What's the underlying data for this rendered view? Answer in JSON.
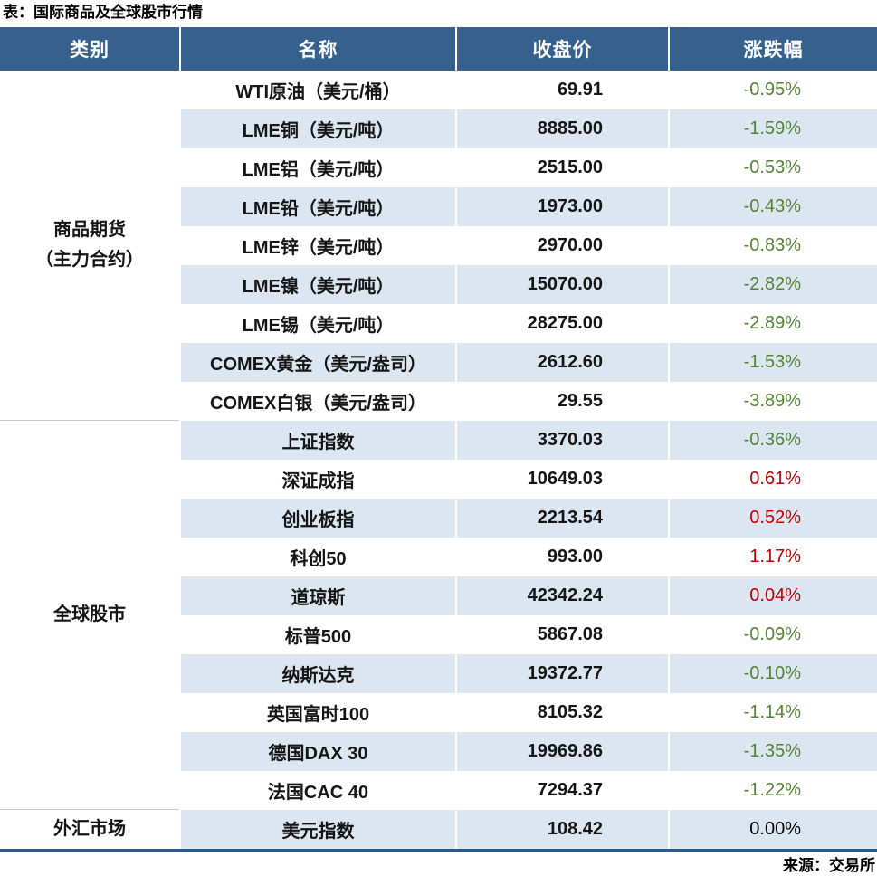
{
  "chart_data": {
    "type": "table",
    "title": "表：国际商品及全球股市行情",
    "source": "来源：交易所",
    "columns": [
      "类别",
      "名称",
      "收盘价",
      "涨跌幅"
    ],
    "groups": [
      {
        "category_lines": [
          "商品期货",
          "（主力合约）"
        ],
        "rows": [
          {
            "name": "WTI原油（美元/桶）",
            "close": "69.91",
            "change": "-0.95%",
            "trend": "down"
          },
          {
            "name": "LME铜（美元/吨）",
            "close": "8885.00",
            "change": "-1.59%",
            "trend": "down"
          },
          {
            "name": "LME铝（美元/吨）",
            "close": "2515.00",
            "change": "-0.53%",
            "trend": "down"
          },
          {
            "name": "LME铅（美元/吨）",
            "close": "1973.00",
            "change": "-0.43%",
            "trend": "down"
          },
          {
            "name": "LME锌（美元/吨）",
            "close": "2970.00",
            "change": "-0.83%",
            "trend": "down"
          },
          {
            "name": "LME镍（美元/吨）",
            "close": "15070.00",
            "change": "-2.82%",
            "trend": "down"
          },
          {
            "name": "LME锡（美元/吨）",
            "close": "28275.00",
            "change": "-2.89%",
            "trend": "down"
          },
          {
            "name": "COMEX黄金（美元/盎司）",
            "close": "2612.60",
            "change": "-1.53%",
            "trend": "down"
          },
          {
            "name": "COMEX白银（美元/盎司）",
            "close": "29.55",
            "change": "-3.89%",
            "trend": "down"
          }
        ]
      },
      {
        "category_lines": [
          "全球股市"
        ],
        "rows": [
          {
            "name": "上证指数",
            "close": "3370.03",
            "change": "-0.36%",
            "trend": "down"
          },
          {
            "name": "深证成指",
            "close": "10649.03",
            "change": "0.61%",
            "trend": "up"
          },
          {
            "name": "创业板指",
            "close": "2213.54",
            "change": "0.52%",
            "trend": "up"
          },
          {
            "name": "科创50",
            "close": "993.00",
            "change": "1.17%",
            "trend": "up"
          },
          {
            "name": "道琼斯",
            "close": "42342.24",
            "change": "0.04%",
            "trend": "up"
          },
          {
            "name": "标普500",
            "close": "5867.08",
            "change": "-0.09%",
            "trend": "down"
          },
          {
            "name": "纳斯达克",
            "close": "19372.77",
            "change": "-0.10%",
            "trend": "down"
          },
          {
            "name": "英国富时100",
            "close": "8105.32",
            "change": "-1.14%",
            "trend": "down"
          },
          {
            "name": "德国DAX 30",
            "close": "19969.86",
            "change": "-1.35%",
            "trend": "down"
          },
          {
            "name": "法国CAC 40",
            "close": "7294.37",
            "change": "-1.22%",
            "trend": "down"
          }
        ]
      },
      {
        "category_lines": [
          "外汇市场"
        ],
        "rows": [
          {
            "name": "美元指数",
            "close": "108.42",
            "change": "0.00%",
            "trend": "flat"
          }
        ]
      }
    ],
    "colors": {
      "header_bg": "#36618E",
      "alt_row_bg": "#DCE6F1",
      "up_red": "#C00000",
      "down_green": "#548235",
      "flat_black": "#000000",
      "bottom_rule": "#2E5984",
      "section_rule": "#C9C9C9"
    }
  }
}
